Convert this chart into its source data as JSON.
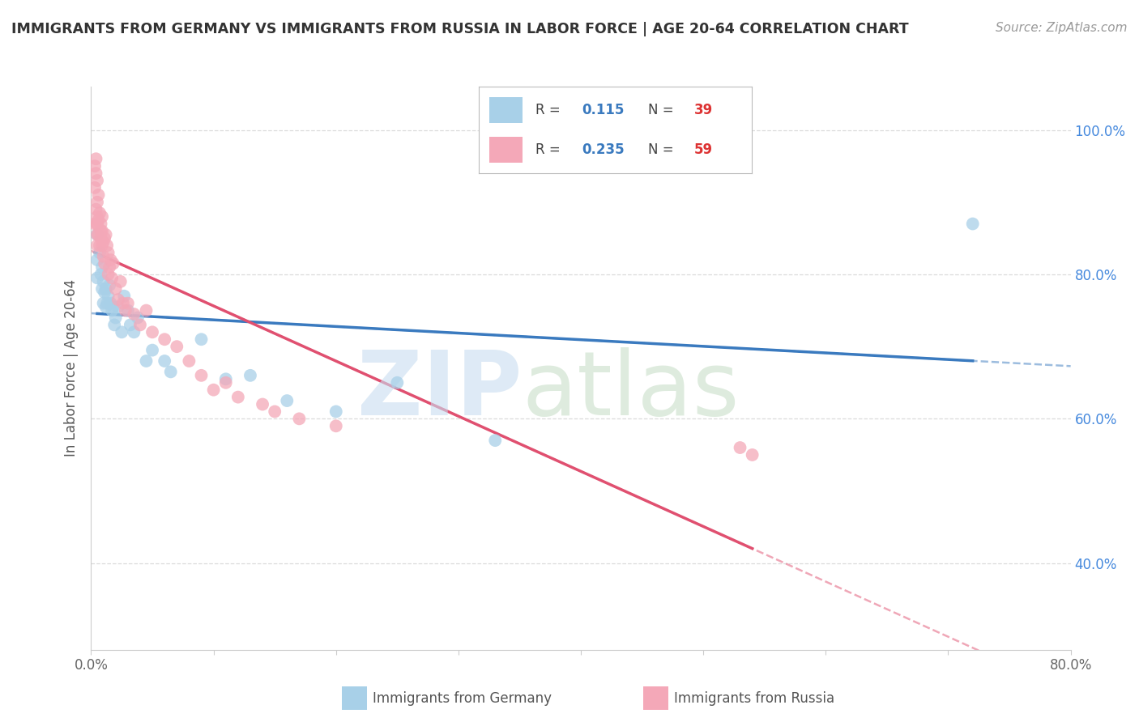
{
  "title": "IMMIGRANTS FROM GERMANY VS IMMIGRANTS FROM RUSSIA IN LABOR FORCE | AGE 20-64 CORRELATION CHART",
  "source": "Source: ZipAtlas.com",
  "ylabel": "In Labor Force | Age 20-64",
  "xlim": [
    0.0,
    0.8
  ],
  "ylim": [
    0.28,
    1.06
  ],
  "xtick_pos": [
    0.0,
    0.1,
    0.2,
    0.3,
    0.4,
    0.5,
    0.6,
    0.7,
    0.8
  ],
  "xticklabels": [
    "0.0%",
    "",
    "",
    "",
    "",
    "",
    "",
    "",
    "80.0%"
  ],
  "ytick_positions": [
    0.4,
    0.6,
    0.8,
    1.0
  ],
  "ytick_labels": [
    "40.0%",
    "60.0%",
    "80.0%",
    "100.0%"
  ],
  "R_germany": 0.115,
  "N_germany": 39,
  "R_russia": 0.235,
  "N_russia": 59,
  "color_germany": "#a8d0e8",
  "color_russia": "#f4a8b8",
  "line_color_germany": "#3a7abf",
  "line_color_russia": "#e05070",
  "germany_x": [
    0.005,
    0.005,
    0.005,
    0.007,
    0.008,
    0.009,
    0.009,
    0.01,
    0.01,
    0.011,
    0.012,
    0.012,
    0.013,
    0.014,
    0.015,
    0.016,
    0.017,
    0.018,
    0.019,
    0.02,
    0.022,
    0.025,
    0.027,
    0.03,
    0.032,
    0.035,
    0.038,
    0.045,
    0.05,
    0.06,
    0.065,
    0.09,
    0.11,
    0.13,
    0.16,
    0.2,
    0.25,
    0.33,
    0.72
  ],
  "germany_y": [
    0.855,
    0.82,
    0.795,
    0.83,
    0.8,
    0.81,
    0.78,
    0.79,
    0.76,
    0.775,
    0.78,
    0.755,
    0.76,
    0.77,
    0.785,
    0.76,
    0.75,
    0.755,
    0.73,
    0.74,
    0.755,
    0.72,
    0.77,
    0.75,
    0.73,
    0.72,
    0.74,
    0.68,
    0.695,
    0.68,
    0.665,
    0.71,
    0.655,
    0.66,
    0.625,
    0.61,
    0.65,
    0.57,
    0.87
  ],
  "russia_x": [
    0.003,
    0.003,
    0.003,
    0.004,
    0.004,
    0.004,
    0.005,
    0.005,
    0.005,
    0.005,
    0.005,
    0.005,
    0.005,
    0.006,
    0.006,
    0.006,
    0.007,
    0.007,
    0.008,
    0.008,
    0.008,
    0.009,
    0.009,
    0.009,
    0.01,
    0.01,
    0.011,
    0.011,
    0.012,
    0.013,
    0.014,
    0.014,
    0.015,
    0.016,
    0.017,
    0.018,
    0.02,
    0.022,
    0.024,
    0.026,
    0.028,
    0.03,
    0.035,
    0.04,
    0.045,
    0.05,
    0.06,
    0.07,
    0.08,
    0.09,
    0.1,
    0.11,
    0.12,
    0.14,
    0.15,
    0.17,
    0.2,
    0.53,
    0.54
  ],
  "russia_y": [
    0.87,
    0.92,
    0.95,
    0.94,
    0.89,
    0.96,
    0.87,
    0.9,
    0.93,
    0.88,
    0.87,
    0.855,
    0.84,
    0.91,
    0.875,
    0.855,
    0.885,
    0.84,
    0.87,
    0.86,
    0.85,
    0.84,
    0.88,
    0.86,
    0.845,
    0.825,
    0.85,
    0.815,
    0.855,
    0.84,
    0.83,
    0.8,
    0.81,
    0.82,
    0.795,
    0.815,
    0.78,
    0.765,
    0.79,
    0.76,
    0.75,
    0.76,
    0.745,
    0.73,
    0.75,
    0.72,
    0.71,
    0.7,
    0.68,
    0.66,
    0.64,
    0.65,
    0.63,
    0.62,
    0.61,
    0.6,
    0.59,
    0.56,
    0.55
  ],
  "background_color": "#ffffff",
  "grid_color": "#cccccc",
  "grid_alpha": 0.7
}
